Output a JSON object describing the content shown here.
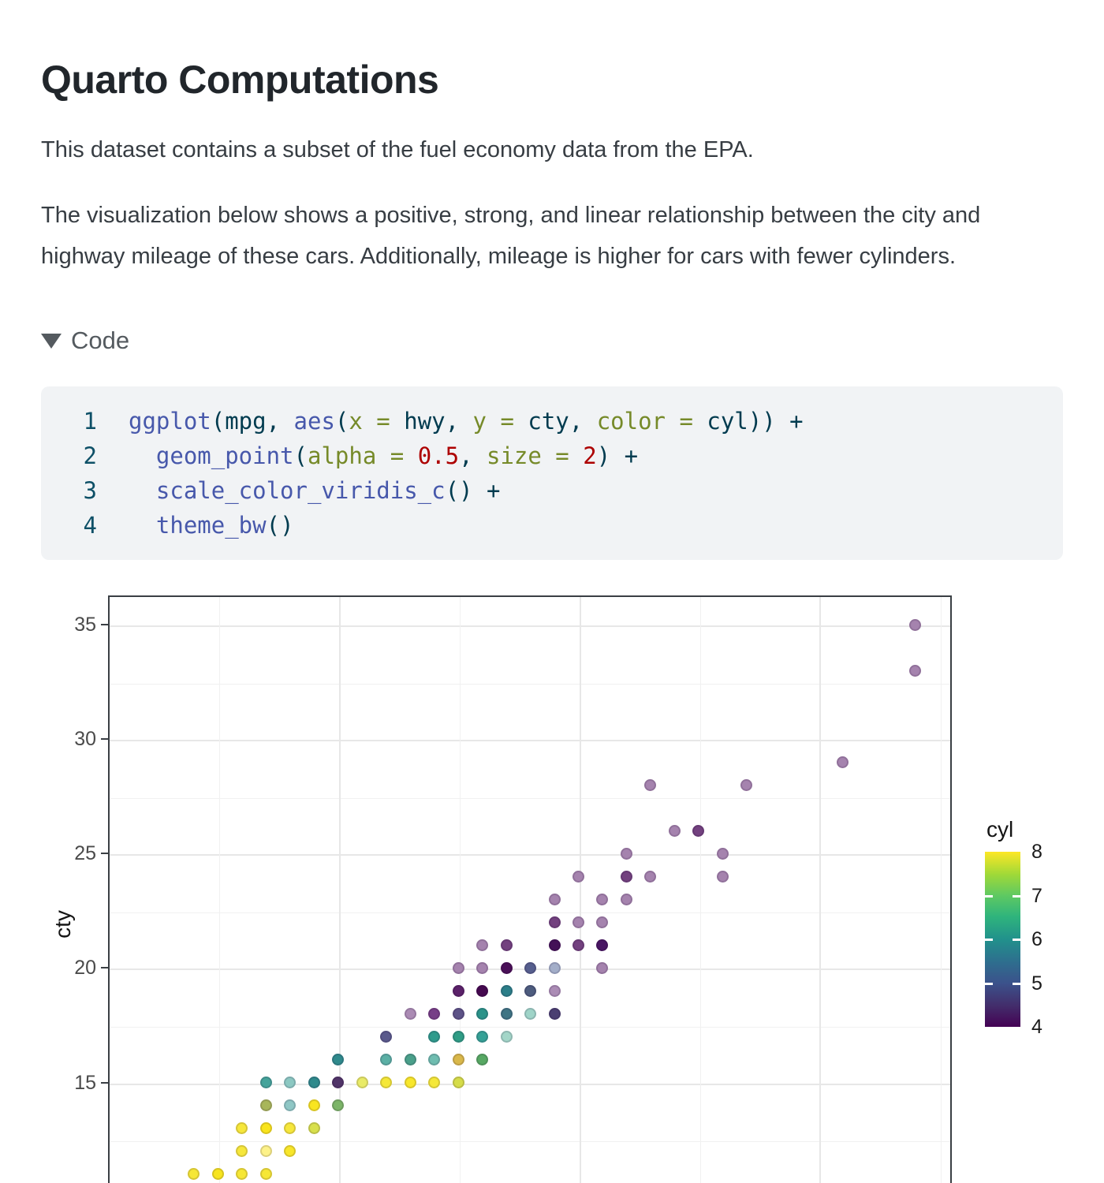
{
  "page": {
    "title": "Quarto Computations"
  },
  "intro": {
    "p1": "This dataset contains a subset of the fuel economy data from the EPA.",
    "p2": "The visualization below shows a positive, strong, and linear relationship between the city and highway mileage of these cars. Additionally, mileage is higher for cars with fewer cylinders."
  },
  "code_section": {
    "toggle_label": "Code",
    "collapse_icon": "triangle-down-icon",
    "lines": [
      {
        "num": "1",
        "tokens": [
          {
            "t": "ggplot",
            "c": "fn"
          },
          {
            "t": "(mpg, ",
            "c": "pl"
          },
          {
            "t": "aes",
            "c": "fn"
          },
          {
            "t": "(",
            "c": "pl"
          },
          {
            "t": "x = ",
            "c": "arg"
          },
          {
            "t": "hwy, ",
            "c": "pl"
          },
          {
            "t": "y = ",
            "c": "arg"
          },
          {
            "t": "cty, ",
            "c": "pl"
          },
          {
            "t": "color = ",
            "c": "arg"
          },
          {
            "t": "cyl)) +",
            "c": "pl"
          }
        ]
      },
      {
        "num": "2",
        "tokens": [
          {
            "t": "  ",
            "c": "pl"
          },
          {
            "t": "geom_point",
            "c": "fn"
          },
          {
            "t": "(",
            "c": "pl"
          },
          {
            "t": "alpha = ",
            "c": "arg"
          },
          {
            "t": "0.5",
            "c": "num"
          },
          {
            "t": ", ",
            "c": "pl"
          },
          {
            "t": "size = ",
            "c": "arg"
          },
          {
            "t": "2",
            "c": "num"
          },
          {
            "t": ") +",
            "c": "pl"
          }
        ]
      },
      {
        "num": "3",
        "tokens": [
          {
            "t": "  ",
            "c": "pl"
          },
          {
            "t": "scale_color_viridis_c",
            "c": "fn"
          },
          {
            "t": "() +",
            "c": "pl"
          }
        ]
      },
      {
        "num": "4",
        "tokens": [
          {
            "t": "  ",
            "c": "pl"
          },
          {
            "t": "theme_bw",
            "c": "fn"
          },
          {
            "t": "()",
            "c": "pl"
          }
        ]
      }
    ],
    "colors": {
      "function": "#4758AB",
      "argument": "#768A29",
      "number": "#AD0000",
      "plain": "#003B4F",
      "background": "#f1f3f5"
    }
  },
  "chart_data": {
    "type": "scatter",
    "title": "",
    "xlabel": "hwy",
    "ylabel": "cty",
    "color_variable": "cyl",
    "point_alpha": 0.5,
    "point_size": 2,
    "theme": "theme_bw",
    "y_ticks": [
      35,
      30,
      25,
      20,
      15
    ],
    "y_minor_gridlines": [
      32.5,
      27.5,
      22.5,
      17.5,
      12.5
    ],
    "x_gridlines_major": [
      20,
      30,
      40
    ],
    "x_gridlines_minor": [
      15,
      25,
      35,
      45
    ],
    "x_ticks_visible": false,
    "xlim": [
      10.4,
      45.7
    ],
    "ylim_visible": [
      11,
      36.3
    ],
    "legend": {
      "title": "cyl",
      "position": "right",
      "ticks": [
        8,
        7,
        6,
        5,
        4
      ],
      "notch_values": [
        7,
        6,
        5
      ],
      "gradient_stops": {
        "8": "#FDE725",
        "7": "#5EC962",
        "6": "#21918C",
        "5": "#3B528B",
        "4": "#440154"
      }
    },
    "points_note": "each point = [hwy, cty, rendered composite color of viridis(cyl) at alpha 0.5 incl. overlaps]",
    "points": [
      [
        44,
        35,
        "#A583AE"
      ],
      [
        44,
        33,
        "#A583AE"
      ],
      [
        41,
        29,
        "#A583AE"
      ],
      [
        33,
        28,
        "#A583AE"
      ],
      [
        37,
        28,
        "#A583AE"
      ],
      [
        34,
        26,
        "#A583AE"
      ],
      [
        35,
        26,
        "#73417F"
      ],
      [
        32,
        25,
        "#A583AE"
      ],
      [
        36,
        25,
        "#A583AE"
      ],
      [
        30,
        24,
        "#A583AE"
      ],
      [
        32,
        24,
        "#73417F"
      ],
      [
        33,
        24,
        "#A583AE"
      ],
      [
        36,
        24,
        "#A583AE"
      ],
      [
        29,
        23,
        "#A583AE"
      ],
      [
        31,
        23,
        "#A583AE"
      ],
      [
        32,
        23,
        "#A583AE"
      ],
      [
        29,
        22,
        "#73417F"
      ],
      [
        30,
        22,
        "#A583AE"
      ],
      [
        31,
        22,
        "#A583AE"
      ],
      [
        26,
        21,
        "#A583AE"
      ],
      [
        27,
        21,
        "#73417F"
      ],
      [
        29,
        21,
        "#441157"
      ],
      [
        30,
        21,
        "#73417F"
      ],
      [
        31,
        21,
        "#491663"
      ],
      [
        25,
        20,
        "#A583AE"
      ],
      [
        26,
        20,
        "#A583AE"
      ],
      [
        27,
        20,
        "#4A1058"
      ],
      [
        28,
        20,
        "#565F8E"
      ],
      [
        29,
        20,
        "#A3AEC9"
      ],
      [
        31,
        20,
        "#A583AE"
      ],
      [
        25,
        19,
        "#5B2169"
      ],
      [
        26,
        19,
        "#45094F"
      ],
      [
        27,
        19,
        "#2C7F89"
      ],
      [
        28,
        19,
        "#4D5C7E"
      ],
      [
        29,
        19,
        "#AB8CB5"
      ],
      [
        23,
        18,
        "#AB8BB4"
      ],
      [
        24,
        18,
        "#773F87"
      ],
      [
        25,
        18,
        "#5D5387"
      ],
      [
        26,
        18,
        "#2A9389"
      ],
      [
        27,
        18,
        "#3F7584"
      ],
      [
        28,
        18,
        "#9FD4C8"
      ],
      [
        29,
        18,
        "#4B3F72"
      ],
      [
        22,
        17,
        "#5A5A8C"
      ],
      [
        24,
        17,
        "#2E9B8C"
      ],
      [
        25,
        17,
        "#2F9D85"
      ],
      [
        26,
        17,
        "#35A196"
      ],
      [
        27,
        17,
        "#A3D6C8"
      ],
      [
        20,
        16,
        "#2F8A8C"
      ],
      [
        22,
        16,
        "#5BB0A5"
      ],
      [
        23,
        16,
        "#4AA08A"
      ],
      [
        24,
        16,
        "#6FBDB0"
      ],
      [
        25,
        16,
        "#D9B84A"
      ],
      [
        26,
        16,
        "#57A863"
      ],
      [
        17,
        15,
        "#45A49B"
      ],
      [
        18,
        15,
        "#8CC8C2"
      ],
      [
        19,
        15,
        "#2F8A8C"
      ],
      [
        20,
        15,
        "#503468"
      ],
      [
        21,
        15,
        "#E9EB67"
      ],
      [
        22,
        15,
        "#F5E838"
      ],
      [
        23,
        15,
        "#F8E72B"
      ],
      [
        24,
        15,
        "#F5E838"
      ],
      [
        25,
        15,
        "#D5DC49"
      ],
      [
        17,
        14,
        "#A8B65A"
      ],
      [
        18,
        14,
        "#8FC7C5"
      ],
      [
        19,
        14,
        "#F9E520"
      ],
      [
        20,
        14,
        "#7CB568"
      ],
      [
        16,
        13,
        "#F6E73B"
      ],
      [
        17,
        13,
        "#F9E41C"
      ],
      [
        18,
        13,
        "#F6E73B"
      ],
      [
        19,
        13,
        "#D8E04C"
      ],
      [
        16,
        12,
        "#F6E73B"
      ],
      [
        17,
        12,
        "#FDF289"
      ],
      [
        18,
        12,
        "#F8E62A"
      ],
      [
        14,
        11,
        "#F6E735"
      ],
      [
        15,
        11,
        "#F7E41F"
      ],
      [
        16,
        11,
        "#F6E735"
      ],
      [
        17,
        11,
        "#F6E735"
      ]
    ]
  }
}
